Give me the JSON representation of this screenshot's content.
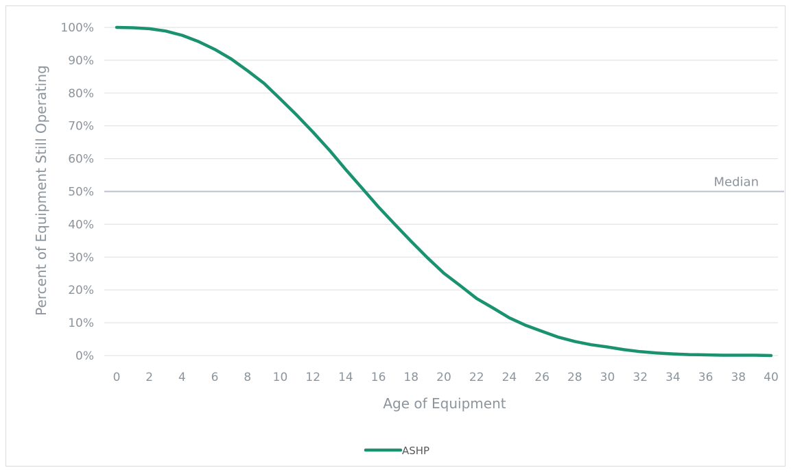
{
  "chart_data": {
    "type": "line",
    "title": "",
    "xlabel": "Age of Equipment",
    "ylabel": "Percent of Equipment Still Operating",
    "xlim": [
      0,
      40
    ],
    "ylim": [
      0,
      100
    ],
    "x_ticks": [
      "0",
      "2",
      "4",
      "6",
      "8",
      "10",
      "12",
      "14",
      "16",
      "18",
      "20",
      "22",
      "24",
      "26",
      "28",
      "30",
      "32",
      "34",
      "36",
      "38",
      "40"
    ],
    "y_ticks": [
      "0%",
      "10%",
      "20%",
      "30%",
      "40%",
      "50%",
      "60%",
      "70%",
      "80%",
      "90%",
      "100%"
    ],
    "grid": true,
    "legend_position": "bottom",
    "annotations": [
      {
        "text": "Median",
        "y": 50
      }
    ],
    "series": [
      {
        "name": "ASHP",
        "color": "#1a9270",
        "x": [
          0,
          1,
          2,
          3,
          4,
          5,
          6,
          7,
          8,
          9,
          10,
          11,
          12,
          13,
          14,
          15,
          16,
          17,
          18,
          19,
          20,
          21,
          22,
          23,
          24,
          25,
          26,
          27,
          28,
          29,
          30,
          31,
          32,
          33,
          34,
          35,
          36,
          37,
          38,
          39,
          40
        ],
        "values": [
          100,
          99.9,
          99.6,
          98.9,
          97.6,
          95.7,
          93.3,
          90.4,
          86.8,
          83,
          78.2,
          73.3,
          68.1,
          62.6,
          56.7,
          51,
          45.3,
          40,
          34.8,
          29.8,
          25.1,
          21.3,
          17.4,
          14.5,
          11.5,
          9.2,
          7.4,
          5.6,
          4.3,
          3.3,
          2.6,
          1.8,
          1.2,
          0.8,
          0.5,
          0.3,
          0.2,
          0.1,
          0.1,
          0.1,
          0
        ]
      }
    ],
    "median_color": "#b8c2cc"
  }
}
